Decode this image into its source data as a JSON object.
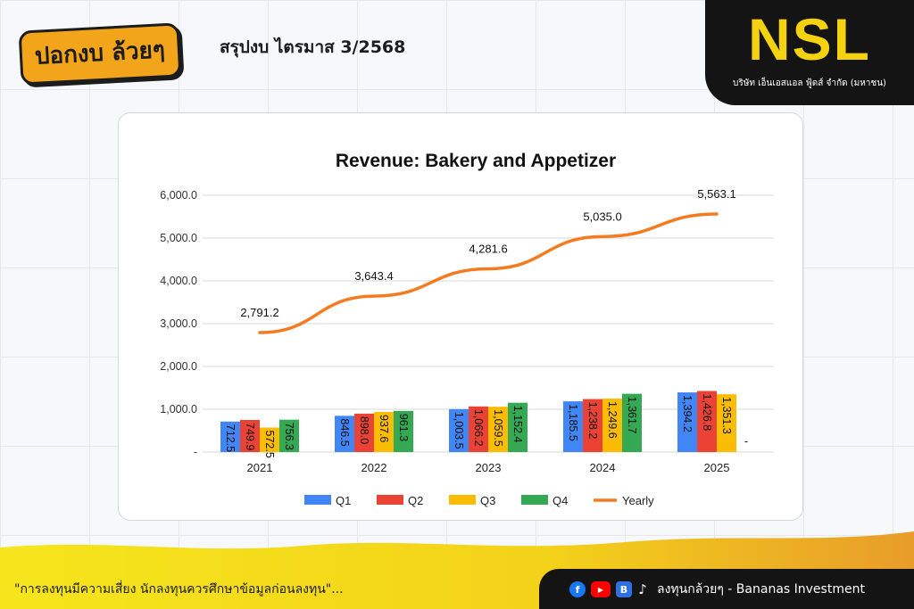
{
  "header": {
    "brand_logo": "ปอกงบ ล้วยๆ",
    "title": "สรุปงบ ไตรมาส 3/2568"
  },
  "company": {
    "logo": "NSL",
    "name": "บริษัท เอ็นเอสแอล ฟู้ดส์ จำกัด (มหาชน)"
  },
  "chart_data": {
    "type": "bar",
    "title": "Revenue: Bakery and Appetizer",
    "categories": [
      "2021",
      "2022",
      "2023",
      "2024",
      "2025"
    ],
    "series": [
      {
        "name": "Q1",
        "color": "#4285f4",
        "values": [
          712.5,
          846.5,
          1003.5,
          1185.5,
          1394.2
        ],
        "labels": [
          "712.5",
          "846.5",
          "1,003.5",
          "1,185.5",
          "1,394.2"
        ]
      },
      {
        "name": "Q2",
        "color": "#ea4335",
        "values": [
          749.9,
          898.0,
          1066.2,
          1238.2,
          1426.8
        ],
        "labels": [
          "749.9",
          "898.0",
          "1,066.2",
          "1,238.2",
          "1,426.8"
        ]
      },
      {
        "name": "Q3",
        "color": "#fbbc04",
        "values": [
          572.5,
          937.6,
          1059.5,
          1249.6,
          1351.3
        ],
        "labels": [
          "572.5",
          "937.6",
          "1,059.5",
          "1,249.6",
          "1,351.3"
        ]
      },
      {
        "name": "Q4",
        "color": "#34a853",
        "values": [
          756.3,
          961.3,
          1152.4,
          1361.7,
          null
        ],
        "labels": [
          "756.3",
          "961.3",
          "1,152.4",
          "1,361.7",
          "-"
        ]
      }
    ],
    "line_series": {
      "name": "Yearly",
      "color": "#f47b20",
      "values": [
        2791.2,
        3643.4,
        4281.6,
        5035.0,
        5563.1
      ],
      "labels": [
        "2,791.2",
        "3,643.4",
        "4,281.6",
        "5,035.0",
        "5,563.1"
      ]
    },
    "ylim": [
      0,
      6000
    ],
    "yticks": [
      0,
      1000,
      2000,
      3000,
      4000,
      5000,
      6000
    ],
    "ytick_labels": [
      "-",
      "1,000.0",
      "2,000.0",
      "3,000.0",
      "4,000.0",
      "5,000.0",
      "6,000.0"
    ],
    "xlabel": "",
    "ylabel": "",
    "grid": true,
    "legend_position": "bottom"
  },
  "footer": {
    "disclaimer": "\"การลงทุนมีความเสี่ยง นักลงทุนควรศึกษาข้อมูลก่อนลงทุน\"...",
    "social_icons": {
      "facebook": "f",
      "youtube": "▶",
      "blockdit": "B",
      "tiktok": "♪"
    },
    "brand": "ลงทุนกล้วยๆ - Bananas Investment"
  },
  "colors": {
    "brand_yellow": "#f4d20f",
    "brand_orange": "#f2a51a",
    "panel_black": "#141414"
  }
}
